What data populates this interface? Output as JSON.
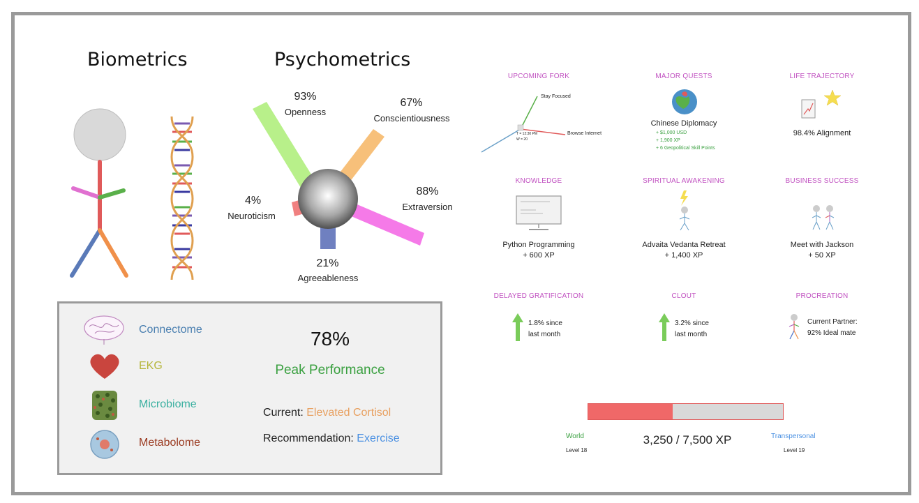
{
  "biometrics": {
    "title": "Biometrics"
  },
  "psychometrics": {
    "title": "Psychometrics",
    "traits": [
      {
        "name": "Openness",
        "percent": "93%",
        "color": "#b8f08a"
      },
      {
        "name": "Conscientiousness",
        "percent": "67%",
        "color": "#f7c07a"
      },
      {
        "name": "Extraversion",
        "percent": "88%",
        "color": "#f57ae8"
      },
      {
        "name": "Neuroticism",
        "percent": "4%",
        "color": "#f08080"
      },
      {
        "name": "Agreeableness",
        "percent": "21%",
        "color": "#6f80c0"
      }
    ]
  },
  "omics": [
    {
      "label": "Connectome",
      "color": "#4a7fb0",
      "icon": "brain-icon"
    },
    {
      "label": "EKG",
      "color": "#b5b53a",
      "icon": "heart-icon"
    },
    {
      "label": "Microbiome",
      "color": "#3ab0a0",
      "icon": "microbiome-icon"
    },
    {
      "label": "Metabolome",
      "color": "#9a3a20",
      "icon": "cell-icon"
    }
  ],
  "performance": {
    "percent": "78%",
    "label": "Peak Performance",
    "current_label": "Current: ",
    "current_value": "Elevated Cortisol",
    "recommendation_label": "Recommendation: ",
    "recommendation_value": "Exercise",
    "colors": {
      "peak": "#3aa040",
      "cortisol": "#e8a060",
      "exercise": "#4a90e2"
    }
  },
  "grid": {
    "upcoming_fork": {
      "title": "UPCOMING FORK",
      "option_a": "Stay Focused",
      "option_b": "Browse Internet",
      "time": "T = 12:30 PM",
      "w": "W = 20"
    },
    "major_quests": {
      "title": "MAJOR QUESTS",
      "name": "Chinese Diplomacy",
      "rewards": [
        "+ $1,000 USD",
        "+ 1,900 XP",
        "+ 6 Geopolitical Skill Points"
      ]
    },
    "life_trajectory": {
      "title": "LIFE TRAJECTORY",
      "value": "98.4% Alignment"
    },
    "knowledge": {
      "title": "KNOWLEDGE",
      "name": "Python Programming",
      "xp": "+ 600 XP"
    },
    "spiritual": {
      "title": "SPIRITUAL AWAKENING",
      "name": "Advaita Vedanta Retreat",
      "xp": "+ 1,400 XP"
    },
    "business": {
      "title": "BUSINESS SUCCESS",
      "name": "Meet with Jackson",
      "xp": "+ 50 XP"
    },
    "delayed": {
      "title": "DELAYED GRATIFICATION",
      "line1": "1.8% since",
      "line2": "last month"
    },
    "clout": {
      "title": "CLOUT",
      "line1": "3.2% since",
      "line2": "last month"
    },
    "procreation": {
      "title": "PROCREATION",
      "line1": "Current Partner:",
      "line2": "92% Ideal mate"
    }
  },
  "xp": {
    "current_level_name": "World",
    "current_level": "Level 18",
    "next_level_name": "Transpersonal",
    "next_level": "Level 19",
    "progress_text": "3,250 / 7,500 XP",
    "progress": 0.4333,
    "fill_color": "#f06868",
    "colors": {
      "world": "#3aa040",
      "transpersonal": "#4a90e2"
    }
  }
}
